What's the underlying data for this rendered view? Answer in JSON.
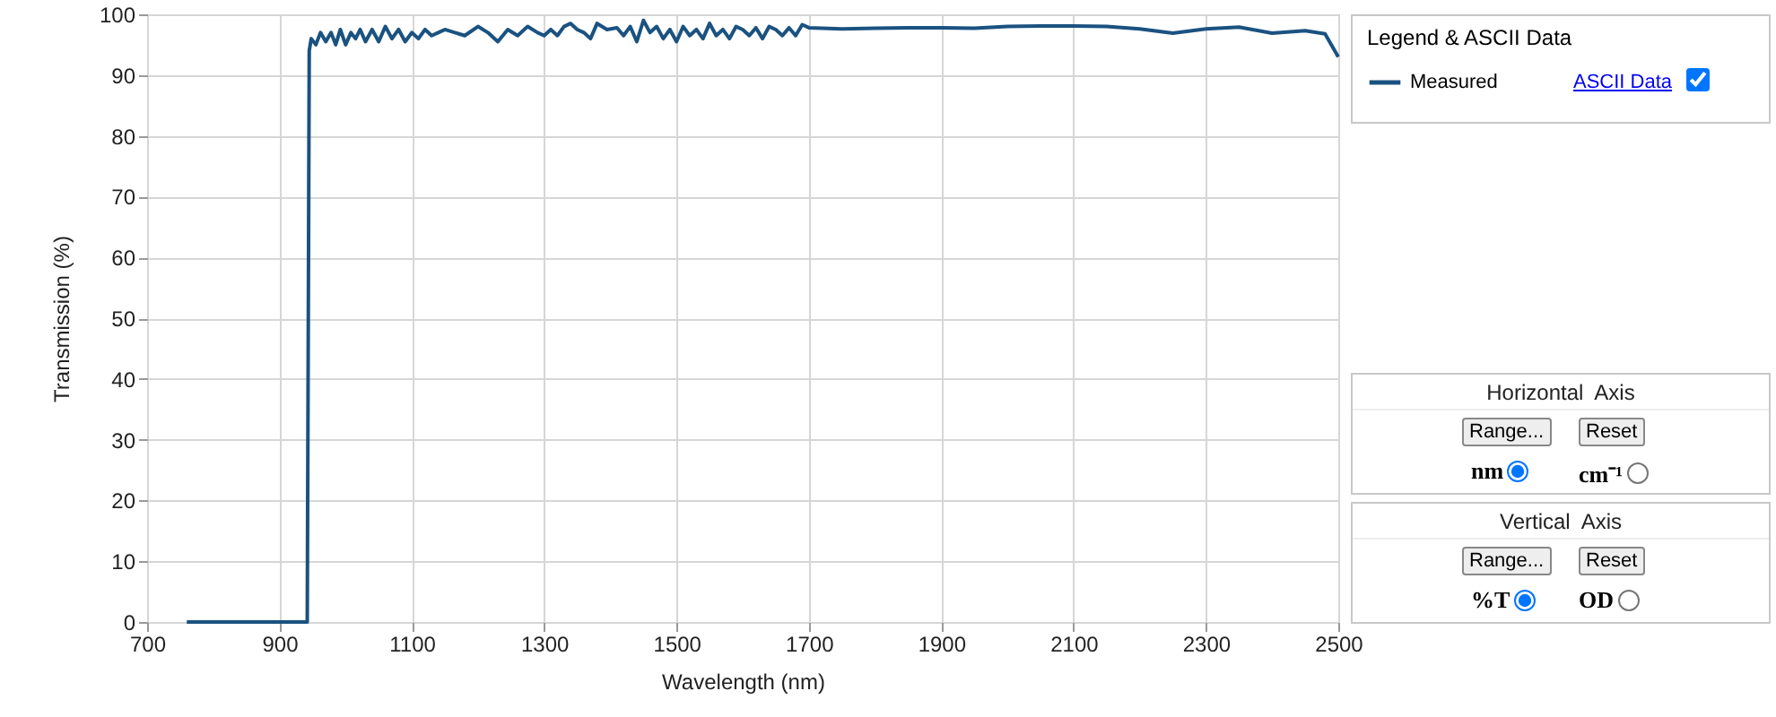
{
  "chart_data": {
    "type": "line",
    "xlabel": "Wavelength (nm)",
    "ylabel": "Transmission (%)",
    "legend_title": "Legend & ASCII Data",
    "legend": "top right",
    "grid": true,
    "line_style": "solid",
    "xlim": [
      700,
      2500
    ],
    "xticks": [
      700,
      900,
      1100,
      1300,
      1500,
      1700,
      1900,
      2100,
      2300,
      2500
    ],
    "ylim": [
      0,
      100
    ],
    "yticks": [
      0,
      10,
      20,
      30,
      40,
      50,
      60,
      70,
      80,
      90,
      100
    ],
    "series": [
      {
        "name": "Measured",
        "color": "#1a5280",
        "x": [
          760,
          900,
          942,
          945,
          948,
          955,
          962,
          970,
          978,
          985,
          992,
          1000,
          1008,
          1015,
          1022,
          1030,
          1040,
          1050,
          1060,
          1070,
          1080,
          1090,
          1100,
          1110,
          1120,
          1130,
          1140,
          1150,
          1165,
          1180,
          1200,
          1215,
          1230,
          1245,
          1260,
          1275,
          1290,
          1300,
          1310,
          1320,
          1330,
          1340,
          1350,
          1360,
          1370,
          1380,
          1395,
          1410,
          1420,
          1430,
          1440,
          1450,
          1460,
          1470,
          1480,
          1490,
          1500,
          1510,
          1520,
          1530,
          1540,
          1550,
          1560,
          1570,
          1580,
          1590,
          1600,
          1610,
          1620,
          1630,
          1640,
          1650,
          1660,
          1670,
          1680,
          1690,
          1700,
          1750,
          1800,
          1850,
          1900,
          1950,
          2000,
          2050,
          2100,
          2150,
          2200,
          2250,
          2300,
          2350,
          2400,
          2450,
          2480,
          2500
        ],
        "values": [
          0,
          0,
          0,
          94,
          96,
          95,
          97,
          95.5,
          97,
          95,
          97.5,
          95,
          97,
          96,
          97.5,
          95.5,
          97.5,
          95.5,
          98,
          96,
          97.5,
          95.5,
          97,
          96,
          97.5,
          96.5,
          97,
          97.5,
          97,
          96.5,
          98,
          97,
          95.5,
          97.5,
          96.5,
          98,
          97,
          96.5,
          97.5,
          96.5,
          98,
          98.5,
          97.5,
          97,
          96,
          98.5,
          97.5,
          97.8,
          96.5,
          98,
          95.5,
          99,
          97,
          98,
          96,
          97.5,
          95.5,
          98,
          96.5,
          97.5,
          96,
          98.5,
          96.5,
          97.5,
          96,
          98,
          97.5,
          96.5,
          97.8,
          96,
          98,
          97.5,
          96.5,
          97.8,
          96.5,
          98.3,
          97.8,
          97.6,
          97.7,
          97.8,
          97.8,
          97.7,
          98,
          98.1,
          98.1,
          98,
          97.6,
          96.9,
          97.6,
          97.9,
          96.9,
          97.3,
          96.8,
          93
        ]
      }
    ],
    "annotations": [
      "ASCII Data",
      "Horizontal  Axis",
      "Range...",
      "Reset",
      "nm",
      "cm⁻¹",
      "Vertical  Axis",
      "Range...",
      "Reset",
      "%T",
      "OD"
    ]
  }
}
